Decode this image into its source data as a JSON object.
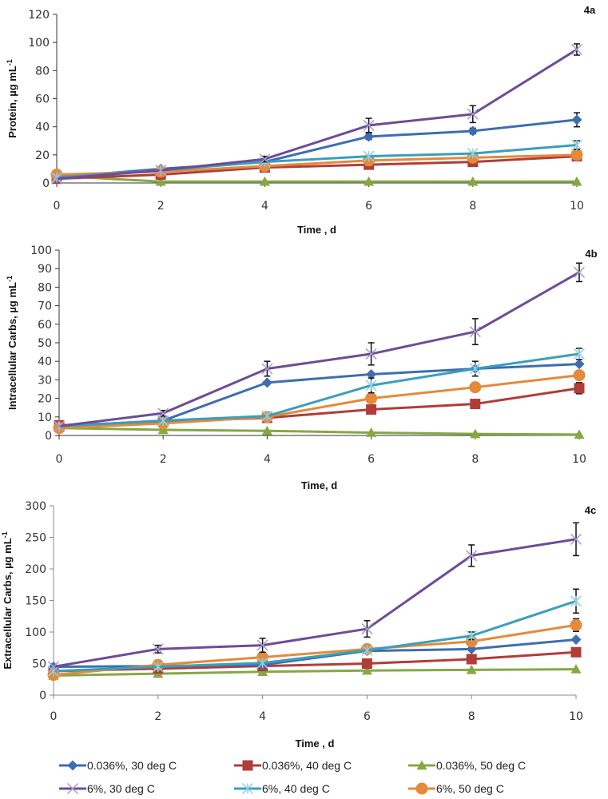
{
  "chart_data": [
    {
      "type": "line",
      "panel_label": "4a",
      "title": "",
      "xlabel": "Time , d",
      "ylabel": "Protein, µg mL",
      "ylabel_sup": "-1",
      "x": [
        0,
        2,
        4,
        6,
        8,
        10
      ],
      "xticks": [
        "0",
        "2",
        "4",
        "6",
        "8",
        "10"
      ],
      "yticks": [
        "0",
        "20",
        "40",
        "60",
        "80",
        "100",
        "120"
      ],
      "ylim": [
        0,
        120
      ],
      "xlim": [
        0,
        10
      ],
      "grid": false,
      "series": [
        {
          "name": "0.036%, 30 deg C",
          "values": [
            4,
            10,
            15,
            33,
            37,
            45
          ],
          "err": [
            0,
            0,
            0,
            2,
            2,
            5
          ]
        },
        {
          "name": "0.036%, 40 deg C",
          "values": [
            3,
            6,
            11,
            13,
            15,
            19
          ],
          "err": [
            0,
            0,
            0,
            0,
            0,
            0
          ]
        },
        {
          "name": "0.036%, 50 deg C",
          "values": [
            5,
            1,
            1,
            1,
            1,
            1
          ],
          "err": [
            0,
            0,
            0,
            0,
            0,
            0
          ]
        },
        {
          "name": "6%, 30 deg C",
          "values": [
            3,
            9,
            17,
            41,
            49,
            95
          ],
          "err": [
            0,
            0,
            2,
            5,
            6,
            4
          ]
        },
        {
          "name": "6%, 40 deg C",
          "values": [
            4,
            9,
            15,
            19,
            21,
            27
          ],
          "err": [
            0,
            0,
            0,
            0,
            0,
            3
          ]
        },
        {
          "name": "6%, 50 deg C",
          "values": [
            6,
            8,
            12,
            16,
            18,
            20
          ],
          "err": [
            0,
            0,
            0,
            0,
            0,
            0
          ]
        }
      ]
    },
    {
      "type": "line",
      "panel_label": "4b",
      "title": "",
      "xlabel": "Time,  d",
      "ylabel": "Intracellular  Carbs, µg mL",
      "ylabel_sup": "-1",
      "x": [
        0,
        2,
        4,
        6,
        8,
        10
      ],
      "xticks": [
        "0",
        "2",
        "4",
        "6",
        "8",
        "10"
      ],
      "yticks": [
        "0",
        "10",
        "20",
        "30",
        "40",
        "50",
        "60",
        "70",
        "80",
        "90",
        "100"
      ],
      "ylim": [
        0,
        100
      ],
      "xlim": [
        0,
        10
      ],
      "grid": false,
      "series": [
        {
          "name": "0.036%, 30 deg C",
          "values": [
            5,
            8,
            28.5,
            33,
            36,
            38.5
          ],
          "err": [
            0,
            0,
            0,
            0,
            0,
            0
          ]
        },
        {
          "name": "0.036%, 40 deg C",
          "values": [
            5.5,
            7.5,
            9.5,
            14,
            17,
            25.5
          ],
          "err": [
            0,
            0,
            0,
            0,
            0,
            3
          ]
        },
        {
          "name": "0.036%, 50 deg C",
          "values": [
            4,
            3,
            2.5,
            1.5,
            0.8,
            0.5
          ],
          "err": [
            0,
            0,
            0,
            0,
            0,
            0
          ]
        },
        {
          "name": "6%, 30 deg C",
          "values": [
            5,
            12,
            36,
            44,
            56,
            88
          ],
          "err": [
            0,
            1.5,
            4,
            6,
            7,
            5
          ]
        },
        {
          "name": "6%, 40 deg C",
          "values": [
            5,
            8,
            10.5,
            27,
            36,
            44
          ],
          "err": [
            0,
            0,
            0,
            4,
            4,
            3
          ]
        },
        {
          "name": "6%, 50 deg C",
          "values": [
            4,
            6.5,
            10,
            20,
            26,
            32.5
          ],
          "err": [
            0,
            0,
            0,
            0,
            0,
            0
          ]
        }
      ]
    },
    {
      "type": "line",
      "panel_label": "4c",
      "title": "",
      "xlabel": "Time , d",
      "ylabel": "Extracellular  Carbs, µg mL",
      "ylabel_sup": "-1",
      "x": [
        0,
        2,
        4,
        6,
        8,
        10
      ],
      "xticks": [
        "0",
        "2",
        "4",
        "6",
        "8",
        "10"
      ],
      "yticks": [
        "0",
        "50",
        "100",
        "150",
        "200",
        "250",
        "300"
      ],
      "ylim": [
        0,
        300
      ],
      "xlim": [
        0,
        10
      ],
      "grid": false,
      "series": [
        {
          "name": "0.036%, 30 deg C",
          "values": [
            45,
            46,
            48,
            70,
            73,
            88
          ],
          "err": [
            0,
            0,
            0,
            0,
            0,
            0
          ]
        },
        {
          "name": "0.036%, 40 deg C",
          "values": [
            38,
            42,
            46,
            50,
            57,
            68
          ],
          "err": [
            0,
            0,
            0,
            0,
            0,
            0
          ]
        },
        {
          "name": "0.036%, 50 deg C",
          "values": [
            31,
            34,
            37,
            39,
            40,
            41
          ],
          "err": [
            0,
            0,
            0,
            0,
            0,
            0
          ]
        },
        {
          "name": "6%, 30 deg C",
          "values": [
            45,
            73,
            79,
            105,
            221,
            247
          ],
          "err": [
            0,
            6,
            11,
            13,
            17,
            26
          ]
        },
        {
          "name": "6%, 40 deg C",
          "values": [
            38,
            45,
            51,
            71,
            94,
            149
          ],
          "err": [
            0,
            0,
            0,
            0,
            6,
            19
          ]
        },
        {
          "name": "6%, 50 deg C",
          "values": [
            32,
            48,
            60,
            73,
            85,
            111
          ],
          "err": [
            0,
            0,
            0,
            0,
            0,
            10
          ]
        }
      ]
    }
  ],
  "legend": {
    "placement": "bottom",
    "items": [
      {
        "label": "0.036%, 30 deg C",
        "color": "#3d6eb0",
        "marker": "diamond"
      },
      {
        "label": "0.036%, 40 deg C",
        "color": "#b03d3a",
        "marker": "square"
      },
      {
        "label": "0.036%, 50 deg C",
        "color": "#86a844",
        "marker": "triangle"
      },
      {
        "label": "6%, 30 deg C",
        "color": "#6e4c96",
        "marker": "x"
      },
      {
        "label": "6%, 40 deg C",
        "color": "#3a9fba",
        "marker": "star"
      },
      {
        "label": "6%, 50 deg C",
        "color": "#e48a3a",
        "marker": "circle"
      }
    ]
  }
}
